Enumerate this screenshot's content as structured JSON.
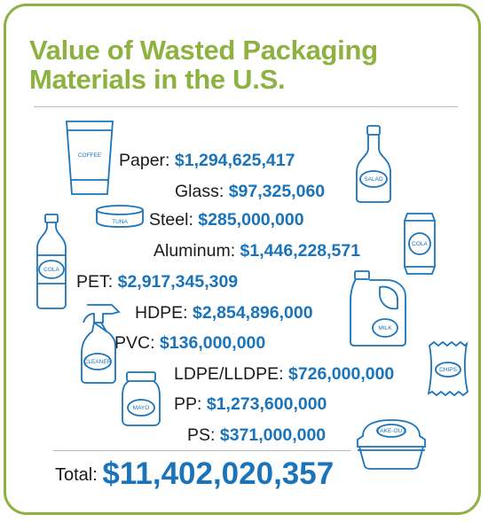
{
  "title_lines": [
    "Value of Wasted Packaging",
    "Materials in the U.S."
  ],
  "items": [
    {
      "material": "Paper:",
      "value": "$1,294,625,417"
    },
    {
      "material": "Glass:",
      "value": "$97,325,060"
    },
    {
      "material": "Steel:",
      "value": "$285,000,000"
    },
    {
      "material": "Aluminum:",
      "value": "$1,446,228,571"
    },
    {
      "material": "PET:",
      "value": "$2,917,345,309"
    },
    {
      "material": "HDPE:",
      "value": "$2,854,896,000"
    },
    {
      "material": "PVC:",
      "value": "$136,000,000"
    },
    {
      "material": "LDPE/LLDPE:",
      "value": "$726,000,000"
    },
    {
      "material": "PP:",
      "value": "$1,273,600,000"
    },
    {
      "material": "PS:",
      "value": "$371,000,000"
    }
  ],
  "total": {
    "label": "Total:",
    "value": "$11,402,020,357"
  },
  "icon_labels": {
    "coffee": "COFFEE",
    "salad": "SALAD",
    "tuna": "TUNA",
    "cola_can": "COLA",
    "cola_bottle": "COLA",
    "milk": "MILK",
    "cleaner": "CLEANER",
    "chips": "CHIPS",
    "mayo": "MAYO",
    "takeout": "TAKE-OUT"
  },
  "colors": {
    "title": "#8db23f",
    "value": "#1a74bb",
    "border": "#8db23f",
    "icon_stroke": "#1a74bb"
  }
}
